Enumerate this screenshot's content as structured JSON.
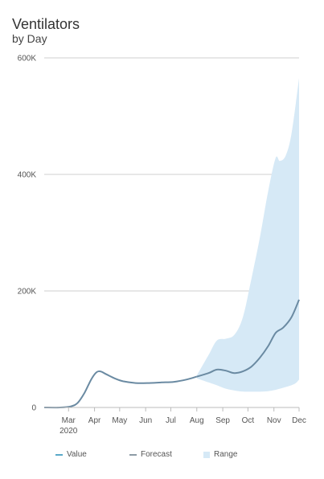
{
  "header": {
    "title": "Ventilators",
    "subtitle": "by Day"
  },
  "colors": {
    "value": "#5aa9c9",
    "forecast": "#8d9ba6",
    "range": "#d6e9f6",
    "line": "#6a8aa2",
    "grid": "#cfcfcf"
  },
  "legend": [
    {
      "label": "Value",
      "type": "line",
      "color": "#5aa9c9"
    },
    {
      "label": "Forecast",
      "type": "line",
      "color": "#8d9ba6"
    },
    {
      "label": "Range",
      "type": "box",
      "color": "#d6e9f6"
    }
  ],
  "chart_data": {
    "type": "area",
    "title": "Ventilators",
    "subtitle": "by Day",
    "ylim": [
      0,
      600000
    ],
    "y_ticks": [
      {
        "value": 0,
        "label": "0"
      },
      {
        "value": 200000,
        "label": "200K"
      },
      {
        "value": 400000,
        "label": "400K"
      },
      {
        "value": 600000,
        "label": "600K"
      }
    ],
    "x_domain": [
      "2020-02-01",
      "2020-12-01"
    ],
    "x_ticks": [
      {
        "date": "2020-03-01",
        "label": "Mar",
        "sublabel": "2020"
      },
      {
        "date": "2020-04-01",
        "label": "Apr"
      },
      {
        "date": "2020-05-01",
        "label": "May"
      },
      {
        "date": "2020-06-01",
        "label": "Jun"
      },
      {
        "date": "2020-07-01",
        "label": "Jul"
      },
      {
        "date": "2020-08-01",
        "label": "Aug"
      },
      {
        "date": "2020-09-01",
        "label": "Sep"
      },
      {
        "date": "2020-10-01",
        "label": "Oct"
      },
      {
        "date": "2020-11-01",
        "label": "Nov"
      },
      {
        "date": "2020-12-01",
        "label": "Dec"
      }
    ],
    "series": [
      {
        "name": "Value",
        "points": [
          [
            "2020-02-01",
            0
          ],
          [
            "2020-02-20",
            0
          ],
          [
            "2020-03-04",
            2000
          ],
          [
            "2020-03-12",
            8000
          ],
          [
            "2020-03-20",
            25000
          ],
          [
            "2020-03-28",
            48000
          ],
          [
            "2020-04-03",
            60000
          ],
          [
            "2020-04-08",
            62000
          ],
          [
            "2020-04-15",
            57000
          ],
          [
            "2020-04-25",
            50000
          ],
          [
            "2020-05-05",
            45000
          ],
          [
            "2020-05-20",
            42000
          ],
          [
            "2020-06-05",
            42000
          ],
          [
            "2020-06-20",
            43000
          ],
          [
            "2020-07-05",
            44000
          ],
          [
            "2020-07-20",
            48000
          ],
          [
            "2020-08-01",
            53000
          ]
        ]
      },
      {
        "name": "Forecast",
        "points": [
          [
            "2020-08-01",
            53000
          ],
          [
            "2020-08-15",
            59000
          ],
          [
            "2020-08-25",
            65000
          ],
          [
            "2020-09-05",
            63000
          ],
          [
            "2020-09-15",
            59000
          ],
          [
            "2020-09-25",
            62000
          ],
          [
            "2020-10-05",
            70000
          ],
          [
            "2020-10-15",
            85000
          ],
          [
            "2020-10-25",
            105000
          ],
          [
            "2020-11-03",
            128000
          ],
          [
            "2020-11-12",
            137000
          ],
          [
            "2020-11-22",
            155000
          ],
          [
            "2020-12-01",
            185000
          ]
        ]
      },
      {
        "name": "Range",
        "upper": [
          [
            "2020-08-01",
            55000
          ],
          [
            "2020-08-15",
            90000
          ],
          [
            "2020-08-25",
            115000
          ],
          [
            "2020-09-05",
            118000
          ],
          [
            "2020-09-15",
            125000
          ],
          [
            "2020-09-25",
            155000
          ],
          [
            "2020-10-05",
            220000
          ],
          [
            "2020-10-15",
            290000
          ],
          [
            "2020-10-25",
            370000
          ],
          [
            "2020-11-03",
            428000
          ],
          [
            "2020-11-08",
            423000
          ],
          [
            "2020-11-15",
            432000
          ],
          [
            "2020-11-22",
            470000
          ],
          [
            "2020-12-01",
            565000
          ]
        ],
        "lower": [
          [
            "2020-08-01",
            50000
          ],
          [
            "2020-08-15",
            43000
          ],
          [
            "2020-08-25",
            38000
          ],
          [
            "2020-09-05",
            32000
          ],
          [
            "2020-09-20",
            28000
          ],
          [
            "2020-10-05",
            27000
          ],
          [
            "2020-10-25",
            28000
          ],
          [
            "2020-11-10",
            33000
          ],
          [
            "2020-11-25",
            40000
          ],
          [
            "2020-12-01",
            48000
          ]
        ]
      }
    ]
  }
}
